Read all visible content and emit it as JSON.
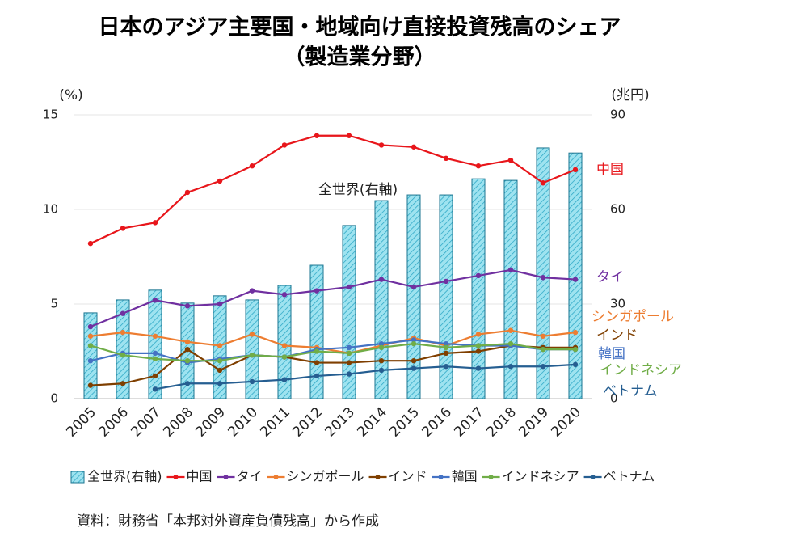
{
  "chart_data": {
    "type": "combo",
    "title": "日本のアジア主要国・地域向け直接投資残高のシェア",
    "subtitle": "（製造業分野）",
    "y_label": "(%)",
    "y2_label": "(兆円)",
    "annotation": "全世界(右軸)",
    "source": "資料：財務省「本邦対外資産負債残高」から作成",
    "categories": [
      "2005",
      "2006",
      "2007",
      "2008",
      "2009",
      "2010",
      "2011",
      "2012",
      "2013",
      "2014",
      "2015",
      "2016",
      "2017",
      "2018",
      "2019",
      "2020"
    ],
    "ylim": [
      0,
      15
    ],
    "yticks": [
      0,
      5,
      10,
      15
    ],
    "y2lim": [
      0,
      90
    ],
    "y2ticks": [
      0,
      30,
      60,
      90
    ],
    "grid": true,
    "series": [
      {
        "name": "全世界(右軸)",
        "type": "bar",
        "axis": "y2",
        "color": "#9ee3f0",
        "values": [
          27.2,
          31.3,
          34.4,
          30.3,
          32.6,
          31.3,
          35.9,
          42.3,
          54.9,
          62.8,
          64.6,
          64.6,
          69.7,
          69.2,
          79.5,
          77.9
        ]
      },
      {
        "name": "中国",
        "type": "line",
        "color": "#e8161b",
        "values": [
          8.2,
          9.0,
          9.3,
          10.9,
          11.5,
          12.3,
          13.4,
          13.9,
          13.9,
          13.4,
          13.3,
          12.7,
          12.3,
          12.6,
          11.4,
          12.1
        ]
      },
      {
        "name": "タイ",
        "type": "line",
        "color": "#7030a0",
        "values": [
          3.8,
          4.5,
          5.2,
          4.9,
          5.0,
          5.7,
          5.5,
          5.7,
          5.9,
          6.3,
          5.9,
          6.2,
          6.5,
          6.8,
          6.4,
          6.3
        ]
      },
      {
        "name": "シンガポール",
        "type": "line",
        "color": "#ed7d31",
        "values": [
          3.3,
          3.5,
          3.3,
          3.0,
          2.8,
          3.4,
          2.8,
          2.7,
          2.4,
          2.8,
          3.2,
          2.8,
          3.4,
          3.6,
          3.3,
          3.5
        ]
      },
      {
        "name": "インド",
        "type": "line",
        "color": "#7f3f00",
        "values": [
          0.7,
          0.8,
          1.2,
          2.6,
          1.5,
          2.3,
          2.2,
          1.9,
          1.9,
          2.0,
          2.0,
          2.4,
          2.5,
          2.8,
          2.7,
          2.7
        ]
      },
      {
        "name": "韓国",
        "type": "line",
        "color": "#4472c4",
        "values": [
          2.0,
          2.4,
          2.4,
          1.9,
          2.1,
          2.3,
          2.2,
          2.6,
          2.7,
          2.9,
          3.1,
          2.9,
          2.8,
          2.8,
          2.6,
          2.6
        ]
      },
      {
        "name": "インドネシア",
        "type": "line",
        "color": "#70ad47",
        "values": [
          2.8,
          2.3,
          2.1,
          2.0,
          2.0,
          2.3,
          2.2,
          2.5,
          2.4,
          2.7,
          2.9,
          2.7,
          2.8,
          2.9,
          2.6,
          2.6
        ]
      },
      {
        "name": "ベトナム",
        "type": "line",
        "color": "#255e91",
        "values": [
          null,
          null,
          0.5,
          0.8,
          0.8,
          0.9,
          1.0,
          1.2,
          1.3,
          1.5,
          1.6,
          1.7,
          1.6,
          1.7,
          1.7,
          1.8
        ]
      }
    ]
  }
}
